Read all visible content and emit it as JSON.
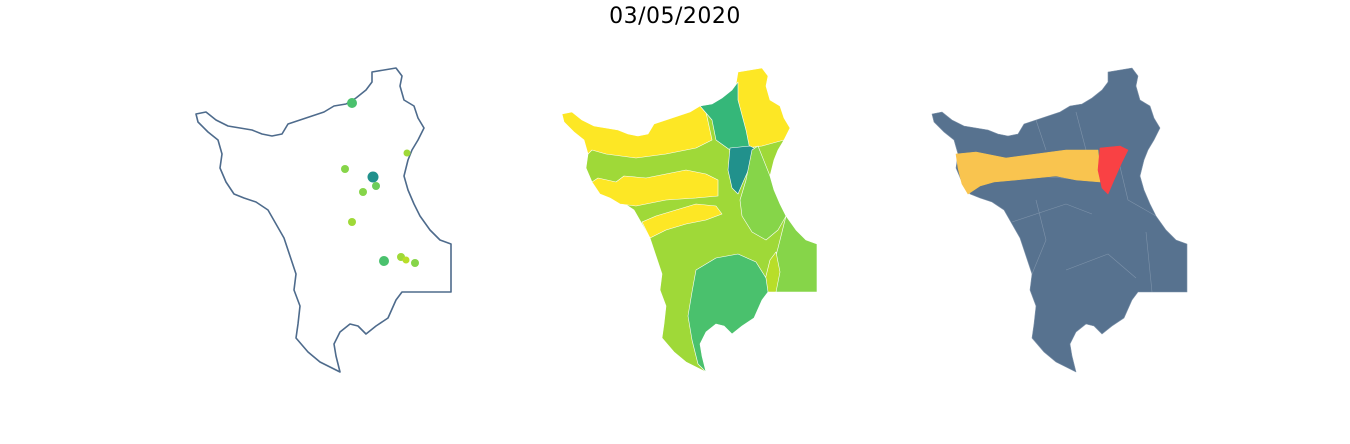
{
  "title": "03/05/2020",
  "colors": {
    "outline": "#4e6b8c",
    "map2_palette": [
      "#fde725",
      "#b8de29",
      "#9fd938",
      "#86d549",
      "#4ac16d",
      "#35b779",
      "#21918c"
    ],
    "map3_base": "#57728f",
    "map3_highlight_orange": "#f9c44f",
    "map3_highlight_red": "#f94144"
  },
  "maps": [
    {
      "name": "point-map",
      "marker_count": 12
    },
    {
      "name": "choropleth-map",
      "region_count": 19
    },
    {
      "name": "highlight-map",
      "highlighted_regions": 2
    }
  ]
}
